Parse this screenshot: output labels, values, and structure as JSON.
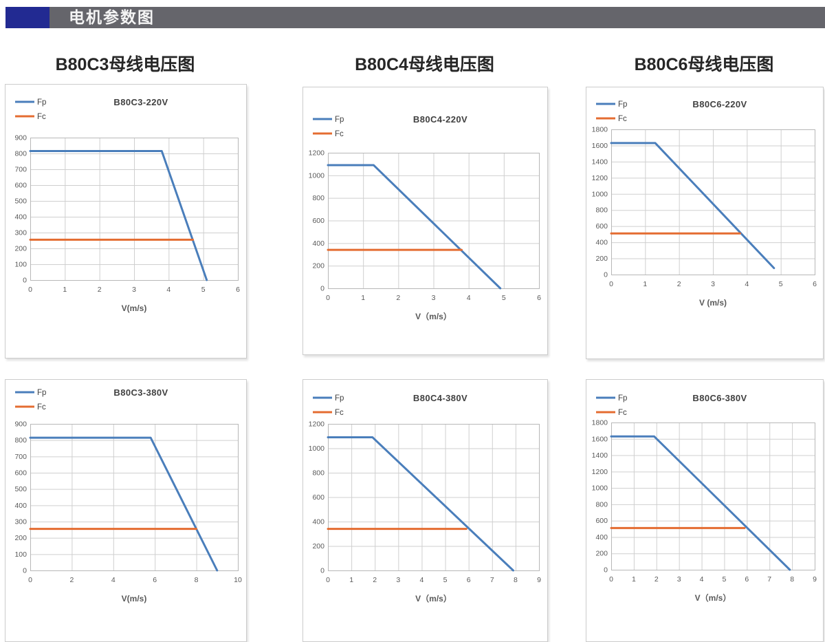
{
  "header": {
    "title": "电机参数图"
  },
  "section_titles": [
    {
      "label": "B80C3母线电压图"
    },
    {
      "label": "B80C4母线电压图"
    },
    {
      "label": "B80C6母线电压图"
    }
  ],
  "colors": {
    "fp_line": "#4a7ebb",
    "fc_line": "#e46c31",
    "grid": "#cfcfcf",
    "plot_border": "#b7b7b7",
    "tick_text": "#595959",
    "title_text": "#404040",
    "legend_text": "#404040",
    "header_bar": "#65656b",
    "header_accent": "#222a92",
    "panel_border": "#cccccc"
  },
  "chart_data": [
    {
      "type": "line",
      "title": "B80C3-220V",
      "xlabel": "V(m/s)",
      "xlim": [
        0,
        6
      ],
      "x_step": 1,
      "ylim": [
        0,
        900
      ],
      "y_step": 100,
      "grid": true,
      "legend_position": "top-left",
      "series": [
        {
          "name": "Fp",
          "color": "#4a7ebb",
          "points": [
            [
              0,
              815
            ],
            [
              3.8,
              815
            ],
            [
              5.1,
              0
            ]
          ]
        },
        {
          "name": "Fc",
          "color": "#e46c31",
          "points": [
            [
              0,
              255
            ],
            [
              4.7,
              255
            ]
          ]
        }
      ],
      "layout": {
        "legend_y": 25,
        "plot_top": 77,
        "plot_bottom": 284
      }
    },
    {
      "type": "line",
      "title": "B80C4-220V",
      "xlabel": "V（m/s）",
      "xlim": [
        0,
        6
      ],
      "x_step": 1,
      "ylim": [
        0,
        1200
      ],
      "y_step": 200,
      "grid": true,
      "legend_position": "top-left",
      "series": [
        {
          "name": "Fp",
          "color": "#4a7ebb",
          "points": [
            [
              0,
              1090
            ],
            [
              1.3,
              1090
            ],
            [
              4.9,
              0
            ]
          ]
        },
        {
          "name": "Fc",
          "color": "#e46c31",
          "points": [
            [
              0,
              340
            ],
            [
              3.8,
              340
            ]
          ]
        }
      ],
      "layout": {
        "legend_y": 46,
        "plot_top": 95,
        "plot_bottom": 292
      }
    },
    {
      "type": "line",
      "title": "B80C6-220V",
      "xlabel": "V (m/s)",
      "xlim": [
        0,
        6
      ],
      "x_step": 1,
      "ylim": [
        0,
        1800
      ],
      "y_step": 200,
      "grid": true,
      "legend_position": "top-left",
      "series": [
        {
          "name": "Fp",
          "color": "#4a7ebb",
          "points": [
            [
              0,
              1630
            ],
            [
              1.3,
              1630
            ],
            [
              4.8,
              80
            ]
          ]
        },
        {
          "name": "Fc",
          "color": "#e46c31",
          "points": [
            [
              0,
              510
            ],
            [
              3.8,
              510
            ]
          ]
        }
      ],
      "layout": {
        "legend_y": 24,
        "plot_top": 61,
        "plot_bottom": 272
      }
    },
    {
      "type": "line",
      "title": "B80C3-380V",
      "xlabel": "V(m/s)",
      "xlim": [
        0,
        10
      ],
      "x_step": 2,
      "ylim": [
        0,
        900
      ],
      "y_step": 100,
      "grid": true,
      "legend_position": "top-left",
      "series": [
        {
          "name": "Fp",
          "color": "#4a7ebb",
          "points": [
            [
              0,
              815
            ],
            [
              5.8,
              815
            ],
            [
              9,
              0
            ]
          ]
        },
        {
          "name": "Fc",
          "color": "#e46c31",
          "points": [
            [
              0,
              255
            ],
            [
              8,
              255
            ]
          ]
        }
      ],
      "layout": {
        "legend_y": 18,
        "plot_top": 64,
        "plot_bottom": 277
      }
    },
    {
      "type": "line",
      "title": "B80C4-380V",
      "xlabel": "V（m/s）",
      "xlim": [
        0,
        9
      ],
      "x_step": 1,
      "ylim": [
        0,
        1200
      ],
      "y_step": 200,
      "grid": true,
      "legend_position": "top-left",
      "series": [
        {
          "name": "Fp",
          "color": "#4a7ebb",
          "points": [
            [
              0,
              1090
            ],
            [
              1.9,
              1090
            ],
            [
              7.9,
              0
            ]
          ]
        },
        {
          "name": "Fc",
          "color": "#e46c31",
          "points": [
            [
              0,
              340
            ],
            [
              5.9,
              340
            ]
          ]
        }
      ],
      "layout": {
        "legend_y": 26,
        "plot_top": 64,
        "plot_bottom": 277
      }
    },
    {
      "type": "line",
      "title": "B80C6-380V",
      "xlabel": "V（m/s）",
      "xlim": [
        0,
        9
      ],
      "x_step": 1,
      "ylim": [
        0,
        1800
      ],
      "y_step": 200,
      "grid": true,
      "legend_position": "top-left",
      "series": [
        {
          "name": "Fp",
          "color": "#4a7ebb",
          "points": [
            [
              0,
              1630
            ],
            [
              1.9,
              1630
            ],
            [
              7.9,
              0
            ]
          ]
        },
        {
          "name": "Fc",
          "color": "#e46c31",
          "points": [
            [
              0,
              510
            ],
            [
              5.9,
              510
            ]
          ]
        }
      ],
      "layout": {
        "legend_y": 26,
        "plot_top": 62,
        "plot_bottom": 276
      }
    }
  ]
}
